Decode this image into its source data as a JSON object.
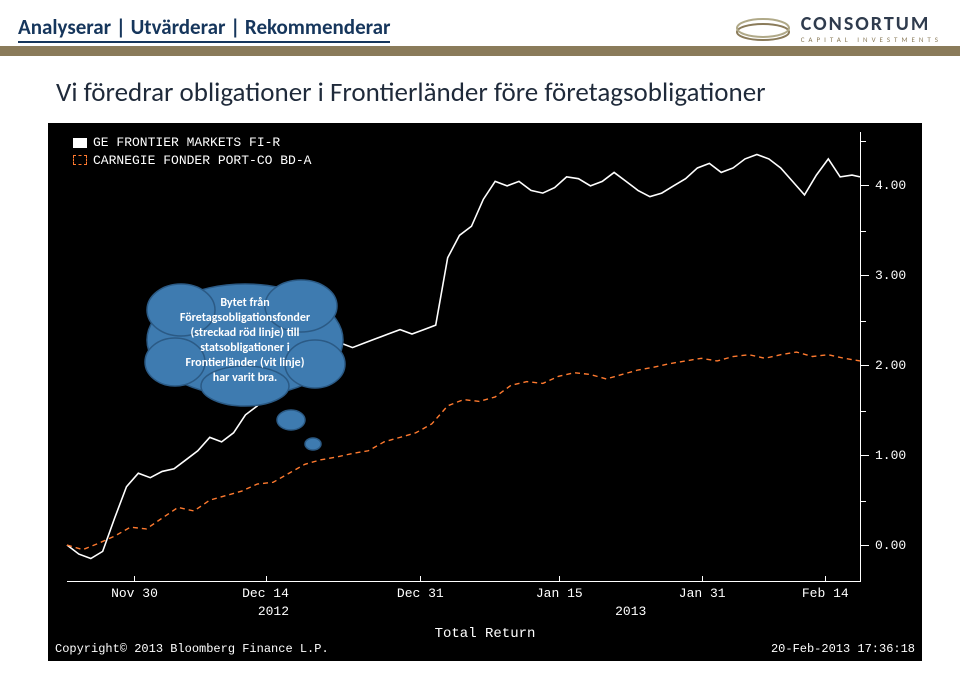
{
  "header": {
    "tagline": "Analyserar | Utvärderar | Rekommenderar",
    "company_name": "CONSORTUM",
    "company_sub": "CAPITAL INVESTMENTS",
    "stripe_color": "#8a7b5a",
    "text_color": "#16365c"
  },
  "slide": {
    "title": "Vi föredrar obligationer i Frontierländer före företagsobligationer",
    "title_fontsize": 27,
    "title_color": "#1f2a3a"
  },
  "chart": {
    "type": "line",
    "background_color": "#000000",
    "axis_color": "#ffffff",
    "font_family": "Courier New",
    "tick_fontsize": 13,
    "legend": {
      "items": [
        {
          "label": "GE FRONTIER MARKETS FI-R",
          "color": "#ffffff",
          "style": "solid",
          "swatch": "solid"
        },
        {
          "label": "CARNEGIE FONDER PORT-CO BD-A",
          "color": "#ff7a2f",
          "style": "dashed",
          "swatch": "dashed"
        }
      ]
    },
    "y_axis": {
      "min": -0.4,
      "max": 4.6,
      "major_ticks": [
        0.0,
        1.0,
        2.0,
        3.0,
        4.0
      ],
      "minor_step": 0.5,
      "label_format": "0.00"
    },
    "x_axis": {
      "ticks": [
        {
          "pos": 0.085,
          "label": "Nov 30"
        },
        {
          "pos": 0.25,
          "label": "Dec 14"
        },
        {
          "pos": 0.445,
          "label": "Dec 31"
        },
        {
          "pos": 0.62,
          "label": "Jan 15"
        },
        {
          "pos": 0.8,
          "label": "Jan 31"
        },
        {
          "pos": 0.955,
          "label": "Feb 14"
        }
      ],
      "years": [
        {
          "pos": 0.26,
          "label": "2012"
        },
        {
          "pos": 0.71,
          "label": "2013"
        }
      ],
      "title": "Total Return"
    },
    "series": [
      {
        "name": "GE FRONTIER MARKETS FI-R",
        "color": "#ffffff",
        "stroke_width": 1.6,
        "dash": "none",
        "points": [
          [
            0.0,
            0.0
          ],
          [
            0.015,
            -0.1
          ],
          [
            0.03,
            -0.15
          ],
          [
            0.045,
            -0.07
          ],
          [
            0.06,
            0.3
          ],
          [
            0.075,
            0.65
          ],
          [
            0.09,
            0.8
          ],
          [
            0.105,
            0.75
          ],
          [
            0.12,
            0.82
          ],
          [
            0.135,
            0.85
          ],
          [
            0.15,
            0.95
          ],
          [
            0.165,
            1.05
          ],
          [
            0.18,
            1.2
          ],
          [
            0.195,
            1.15
          ],
          [
            0.21,
            1.25
          ],
          [
            0.225,
            1.45
          ],
          [
            0.24,
            1.55
          ],
          [
            0.255,
            1.7
          ],
          [
            0.27,
            1.8
          ],
          [
            0.285,
            1.9
          ],
          [
            0.3,
            2.05
          ],
          [
            0.315,
            2.25
          ],
          [
            0.33,
            2.3
          ],
          [
            0.345,
            2.25
          ],
          [
            0.36,
            2.2
          ],
          [
            0.375,
            2.25
          ],
          [
            0.39,
            2.3
          ],
          [
            0.405,
            2.35
          ],
          [
            0.42,
            2.4
          ],
          [
            0.435,
            2.35
          ],
          [
            0.45,
            2.4
          ],
          [
            0.465,
            2.45
          ],
          [
            0.48,
            3.2
          ],
          [
            0.495,
            3.45
          ],
          [
            0.51,
            3.55
          ],
          [
            0.525,
            3.85
          ],
          [
            0.54,
            4.05
          ],
          [
            0.555,
            4.0
          ],
          [
            0.57,
            4.05
          ],
          [
            0.585,
            3.95
          ],
          [
            0.6,
            3.92
          ],
          [
            0.615,
            3.98
          ],
          [
            0.63,
            4.1
          ],
          [
            0.645,
            4.08
          ],
          [
            0.66,
            4.0
          ],
          [
            0.675,
            4.05
          ],
          [
            0.69,
            4.15
          ],
          [
            0.705,
            4.05
          ],
          [
            0.72,
            3.95
          ],
          [
            0.735,
            3.88
          ],
          [
            0.75,
            3.92
          ],
          [
            0.765,
            4.0
          ],
          [
            0.78,
            4.08
          ],
          [
            0.795,
            4.2
          ],
          [
            0.81,
            4.25
          ],
          [
            0.825,
            4.15
          ],
          [
            0.84,
            4.2
          ],
          [
            0.855,
            4.3
          ],
          [
            0.87,
            4.35
          ],
          [
            0.885,
            4.3
          ],
          [
            0.9,
            4.2
          ],
          [
            0.915,
            4.05
          ],
          [
            0.93,
            3.9
          ],
          [
            0.945,
            4.12
          ],
          [
            0.96,
            4.3
          ],
          [
            0.975,
            4.1
          ],
          [
            0.99,
            4.12
          ],
          [
            1.0,
            4.1
          ]
        ]
      },
      {
        "name": "CARNEGIE FONDER PORT-CO BD-A",
        "color": "#ff7a2f",
        "stroke_width": 1.4,
        "dash": "5,4",
        "points": [
          [
            0.0,
            0.0
          ],
          [
            0.02,
            -0.05
          ],
          [
            0.04,
            0.02
          ],
          [
            0.06,
            0.1
          ],
          [
            0.08,
            0.2
          ],
          [
            0.1,
            0.18
          ],
          [
            0.12,
            0.3
          ],
          [
            0.14,
            0.42
          ],
          [
            0.16,
            0.38
          ],
          [
            0.18,
            0.5
          ],
          [
            0.2,
            0.55
          ],
          [
            0.22,
            0.6
          ],
          [
            0.24,
            0.68
          ],
          [
            0.26,
            0.7
          ],
          [
            0.28,
            0.8
          ],
          [
            0.3,
            0.9
          ],
          [
            0.32,
            0.95
          ],
          [
            0.34,
            0.98
          ],
          [
            0.36,
            1.02
          ],
          [
            0.38,
            1.05
          ],
          [
            0.4,
            1.15
          ],
          [
            0.42,
            1.2
          ],
          [
            0.44,
            1.25
          ],
          [
            0.46,
            1.35
          ],
          [
            0.48,
            1.55
          ],
          [
            0.5,
            1.62
          ],
          [
            0.52,
            1.6
          ],
          [
            0.54,
            1.65
          ],
          [
            0.56,
            1.78
          ],
          [
            0.58,
            1.82
          ],
          [
            0.6,
            1.8
          ],
          [
            0.62,
            1.88
          ],
          [
            0.64,
            1.92
          ],
          [
            0.66,
            1.9
          ],
          [
            0.68,
            1.85
          ],
          [
            0.7,
            1.9
          ],
          [
            0.72,
            1.95
          ],
          [
            0.74,
            1.98
          ],
          [
            0.76,
            2.02
          ],
          [
            0.78,
            2.05
          ],
          [
            0.8,
            2.08
          ],
          [
            0.82,
            2.05
          ],
          [
            0.84,
            2.1
          ],
          [
            0.86,
            2.12
          ],
          [
            0.88,
            2.08
          ],
          [
            0.9,
            2.12
          ],
          [
            0.92,
            2.15
          ],
          [
            0.94,
            2.1
          ],
          [
            0.96,
            2.12
          ],
          [
            0.98,
            2.08
          ],
          [
            1.0,
            2.05
          ]
        ]
      }
    ],
    "footer": {
      "copyright": "Copyright© 2013 Bloomberg Finance L.P.",
      "timestamp": "20-Feb-2013 17:36:18"
    }
  },
  "callout": {
    "fill": "#3e7bb0",
    "stroke": "#2b5a85",
    "text_lines": [
      "Bytet från",
      "Företagsobligationsfonder",
      "(streckad röd linje) till",
      "statsobligationer i",
      "Frontierländer (vit linje)",
      "har varit bra."
    ],
    "fontsize": 12,
    "text_color": "#ffffff"
  }
}
